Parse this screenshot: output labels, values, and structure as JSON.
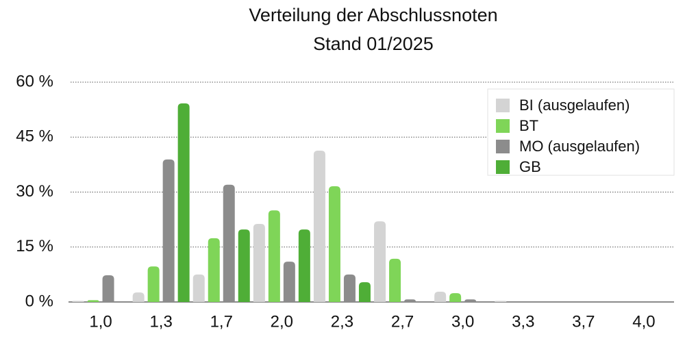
{
  "chart_data": {
    "type": "bar",
    "title": "Verteilung der Abschlussnoten",
    "subtitle": "Stand 01/2025",
    "categories": [
      "1,0",
      "1,3",
      "1,7",
      "2,0",
      "2,3",
      "2,7",
      "3,0",
      "3,3",
      "3,7",
      "4,0"
    ],
    "series": [
      {
        "name": "BI (ausgelaufen)",
        "color": "#d4d4d4",
        "values": [
          0.3,
          2.6,
          7.5,
          21.3,
          41.3,
          22,
          2.8,
          0.3,
          0,
          0
        ]
      },
      {
        "name": "BT",
        "color": "#7fd558",
        "values": [
          0.5,
          9.7,
          17.4,
          25,
          31.6,
          11.8,
          2.4,
          0,
          0,
          0
        ]
      },
      {
        "name": "MO (ausgelaufen)",
        "color": "#8c8c8c",
        "values": [
          7.3,
          38.9,
          32,
          11,
          7.5,
          0.7,
          0.7,
          0,
          0,
          0
        ]
      },
      {
        "name": "GB",
        "color": "#4fae37",
        "values": [
          0,
          54.2,
          19.8,
          19.8,
          5.4,
          0,
          0,
          0,
          0,
          0
        ]
      }
    ],
    "ylim": [
      0,
      60
    ],
    "yticks": [
      {
        "value": 0,
        "label": "0 %"
      },
      {
        "value": 15,
        "label": "15 %"
      },
      {
        "value": 30,
        "label": "30 %"
      },
      {
        "value": 45,
        "label": "45 %"
      },
      {
        "value": 60,
        "label": "60 %"
      }
    ],
    "grid": true,
    "legend": "upper right"
  }
}
